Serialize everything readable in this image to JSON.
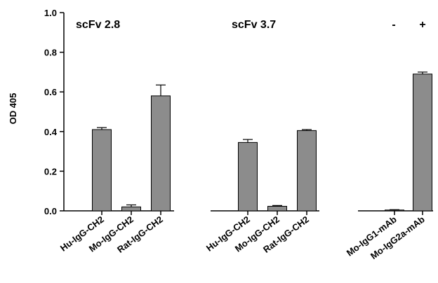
{
  "chart_data": {
    "type": "bar",
    "title": "",
    "xlabel": "",
    "ylabel": "OD 405",
    "ylim": [
      0,
      1.0
    ],
    "yticks": [
      0.0,
      0.2,
      0.4,
      0.6,
      0.8,
      1.0
    ],
    "ytick_labels": [
      "0.0",
      "0.2",
      "0.4",
      "0.6",
      "0.8",
      "1.0"
    ],
    "grid": false,
    "bar_color": "#8c8c8c",
    "group_labels": [
      "scFv 2.8",
      "scFv 3.7",
      "-",
      "+"
    ],
    "categories": [
      "Hu-IgG-CH2",
      "Mo-IgG-CH2",
      "Rat-IgG-CH2",
      "Hu-IgG-CH2",
      "Mo-IgG-CH2",
      "Rat-IgG-CH2",
      "Mo-IgG1-mAb",
      "Mo-IgG2a-mAb"
    ],
    "values": [
      0.41,
      0.02,
      0.58,
      0.345,
      0.023,
      0.405,
      0.003,
      0.69
    ],
    "errors": [
      0.01,
      0.01,
      0.055,
      0.015,
      0.004,
      0.005,
      0.003,
      0.01
    ]
  }
}
